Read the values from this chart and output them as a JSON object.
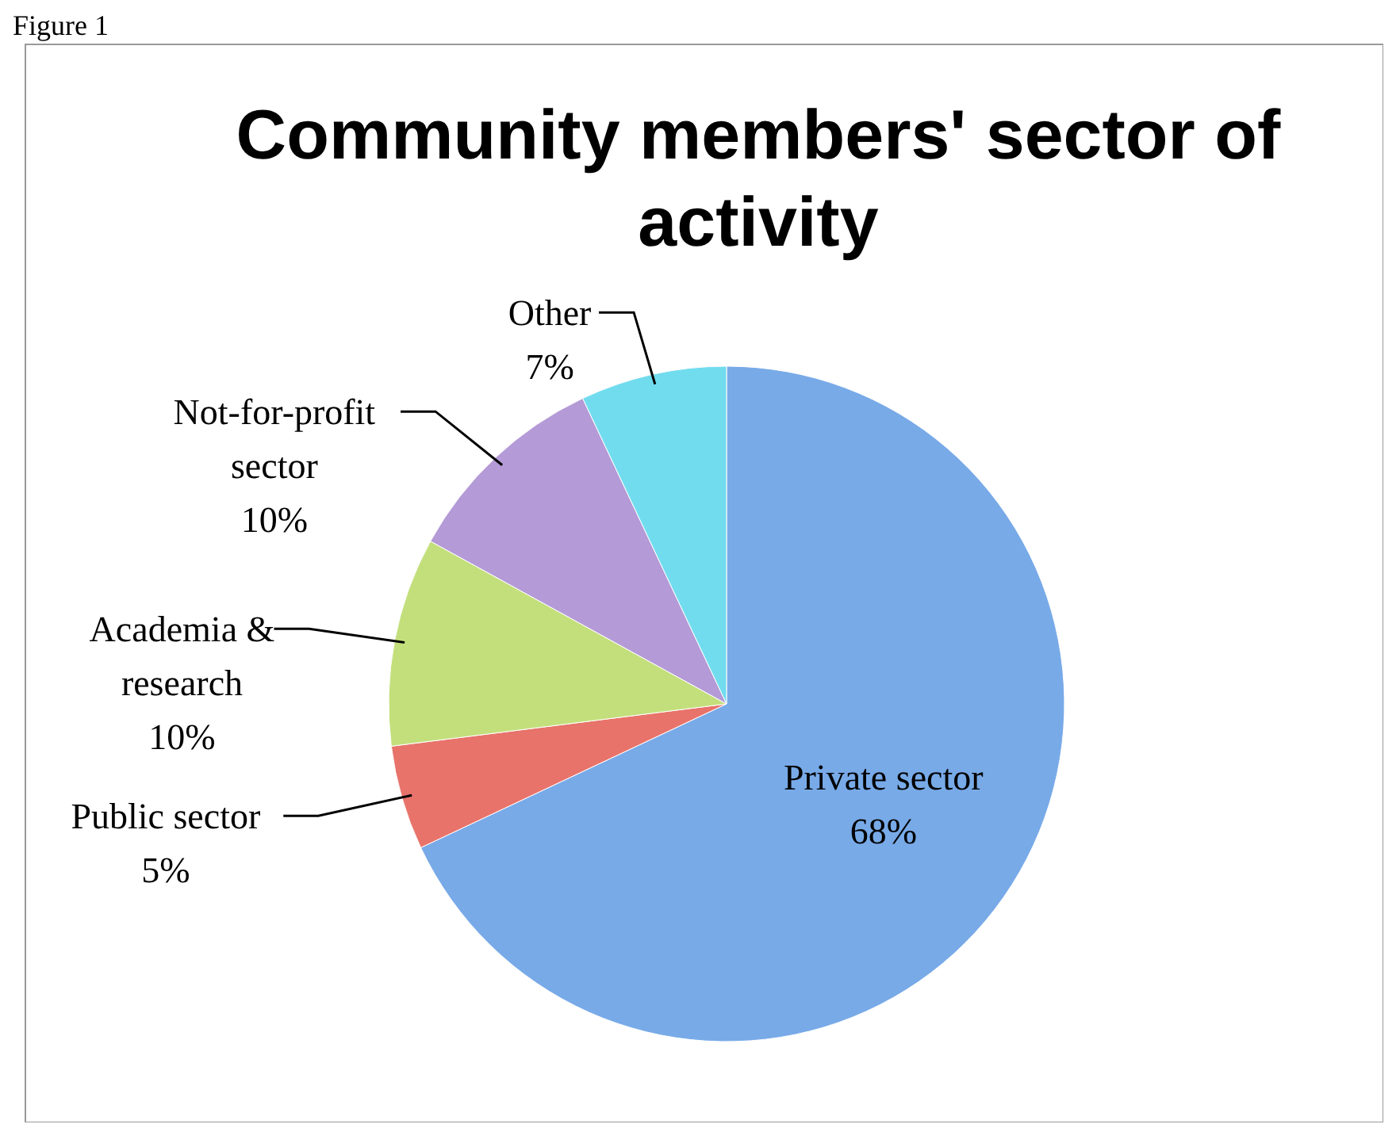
{
  "chart_data": {
    "type": "pie",
    "title": "Community members' sector of activity",
    "annotations": [
      "Figure 1"
    ],
    "categories": [
      "Private sector",
      "Public sector",
      "Academia & research",
      "Not-for-profit sector",
      "Other"
    ],
    "values": [
      68,
      5,
      10,
      10,
      7
    ],
    "value_labels": [
      "68%",
      "5%",
      "10%",
      "10%",
      "7%"
    ],
    "colors": [
      "#78aae8",
      "#e8736b",
      "#c3df7c",
      "#b49ad6",
      "#72dcef"
    ]
  }
}
